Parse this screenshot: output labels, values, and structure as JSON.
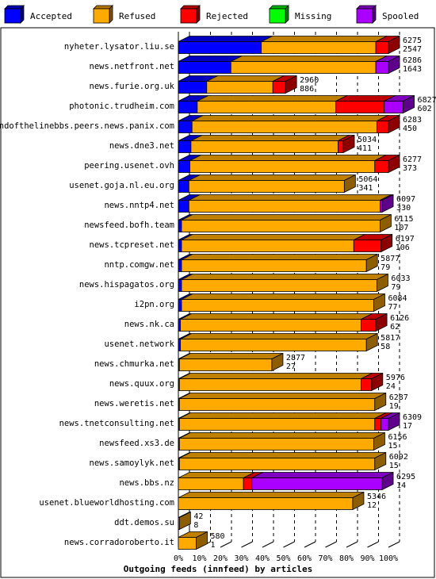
{
  "chart_data": {
    "type": "bar",
    "orientation": "horizontal",
    "stacked": true,
    "title": "",
    "xlabel": "Outgoing feeds (innfeed) by articles",
    "ylabel": "",
    "xlim": [
      0,
      100
    ],
    "x_ticks": [
      "0%",
      "10%",
      "20%",
      "30%",
      "40%",
      "50%",
      "60%",
      "70%",
      "80%",
      "90%",
      "100%"
    ],
    "grid": true,
    "legend_position": "top",
    "series": [
      {
        "name": "Accepted",
        "color": "#0000ff"
      },
      {
        "name": "Refused",
        "color": "#ffaa00"
      },
      {
        "name": "Rejected",
        "color": "#ff0000"
      },
      {
        "name": "Missing",
        "color": "#00ff00"
      },
      {
        "name": "Spooled",
        "color": "#aa00ff"
      }
    ],
    "rows": [
      {
        "label": "nyheter.lysator.liu.se",
        "offered": "6275",
        "accepted": "2547",
        "segments": [
          39.5,
          54.5,
          6,
          0,
          0
        ]
      },
      {
        "label": "news.netfront.net",
        "offered": "6286",
        "accepted": "1643",
        "segments": [
          25,
          69,
          0,
          0,
          6
        ]
      },
      {
        "label": "news.furie.org.uk",
        "offered": "2960",
        "accepted": "886",
        "segments": [
          13.5,
          31.5,
          6,
          0,
          0
        ]
      },
      {
        "label": "photonic.trudheim.com",
        "offered": "6827",
        "accepted": "602",
        "segments": [
          9,
          66,
          23,
          0,
          9
        ]
      },
      {
        "label": "endofthelinebbs.peers.news.panix.com",
        "offered": "6283",
        "accepted": "450",
        "segments": [
          6.5,
          88,
          5.5,
          0,
          0
        ]
      },
      {
        "label": "news.dne3.net",
        "offered": "5034",
        "accepted": "411",
        "segments": [
          6,
          70,
          2.5,
          0,
          0
        ]
      },
      {
        "label": "peering.usenet.ovh",
        "offered": "6277",
        "accepted": "373",
        "segments": [
          5.5,
          88,
          6.5,
          0,
          0
        ]
      },
      {
        "label": "usenet.goja.nl.eu.org",
        "offered": "5064",
        "accepted": "341",
        "segments": [
          5,
          74,
          0,
          0,
          0
        ]
      },
      {
        "label": "news.nntp4.net",
        "offered": "6097",
        "accepted": "330",
        "segments": [
          5,
          91,
          0,
          0,
          1
        ]
      },
      {
        "label": "newsfeed.bofh.team",
        "offered": "6115",
        "accepted": "107",
        "segments": [
          1.5,
          94.5,
          0,
          0,
          0
        ]
      },
      {
        "label": "news.tcpreset.net",
        "offered": "6197",
        "accepted": "106",
        "segments": [
          1.5,
          82,
          13,
          0,
          0
        ]
      },
      {
        "label": "nntp.comgw.net",
        "offered": "5877",
        "accepted": "79",
        "segments": [
          1.5,
          88,
          0,
          0,
          0
        ]
      },
      {
        "label": "news.hispagatos.org",
        "offered": "6033",
        "accepted": "79",
        "segments": [
          1.5,
          93,
          0,
          0,
          0
        ]
      },
      {
        "label": "i2pn.org",
        "offered": "6084",
        "accepted": "77",
        "segments": [
          1.5,
          91.5,
          0,
          0,
          0
        ]
      },
      {
        "label": "news.nk.ca",
        "offered": "6126",
        "accepted": "62",
        "segments": [
          1,
          86,
          7,
          0,
          0
        ]
      },
      {
        "label": "usenet.network",
        "offered": "5817",
        "accepted": "58",
        "segments": [
          1,
          88.5,
          0,
          0,
          0
        ]
      },
      {
        "label": "news.chmurka.net",
        "offered": "2877",
        "accepted": "27",
        "segments": [
          0.5,
          44,
          0,
          0,
          0
        ]
      },
      {
        "label": "news.quux.org",
        "offered": "5976",
        "accepted": "24",
        "segments": [
          0.5,
          86.5,
          5,
          0,
          0
        ]
      },
      {
        "label": "news.weretis.net",
        "offered": "6287",
        "accepted": "19",
        "segments": [
          0.5,
          93,
          0,
          0,
          0
        ]
      },
      {
        "label": "news.tnetconsulting.net",
        "offered": "6309",
        "accepted": "17",
        "segments": [
          0.5,
          93,
          3,
          0,
          3.5
        ]
      },
      {
        "label": "newsfeed.xs3.de",
        "offered": "6156",
        "accepted": "15",
        "segments": [
          0.5,
          92.5,
          0,
          0,
          0
        ]
      },
      {
        "label": "news.samoylyk.net",
        "offered": "6092",
        "accepted": "15",
        "segments": [
          0.5,
          93,
          0,
          0,
          0
        ]
      },
      {
        "label": "news.bbs.nz",
        "offered": "6295",
        "accepted": "14",
        "segments": [
          0,
          31,
          4,
          0,
          62
        ]
      },
      {
        "label": "usenet.blueworldhosting.com",
        "offered": "5346",
        "accepted": "12",
        "segments": [
          0,
          83,
          0,
          0,
          0
        ]
      },
      {
        "label": "ddt.demos.su",
        "offered": "42",
        "accepted": "8",
        "segments": [
          0,
          0.5,
          0,
          0,
          0
        ]
      },
      {
        "label": "news.corradoroberto.it",
        "offered": "580",
        "accepted": "1",
        "segments": [
          0,
          8.5,
          0,
          0,
          0
        ]
      }
    ]
  }
}
